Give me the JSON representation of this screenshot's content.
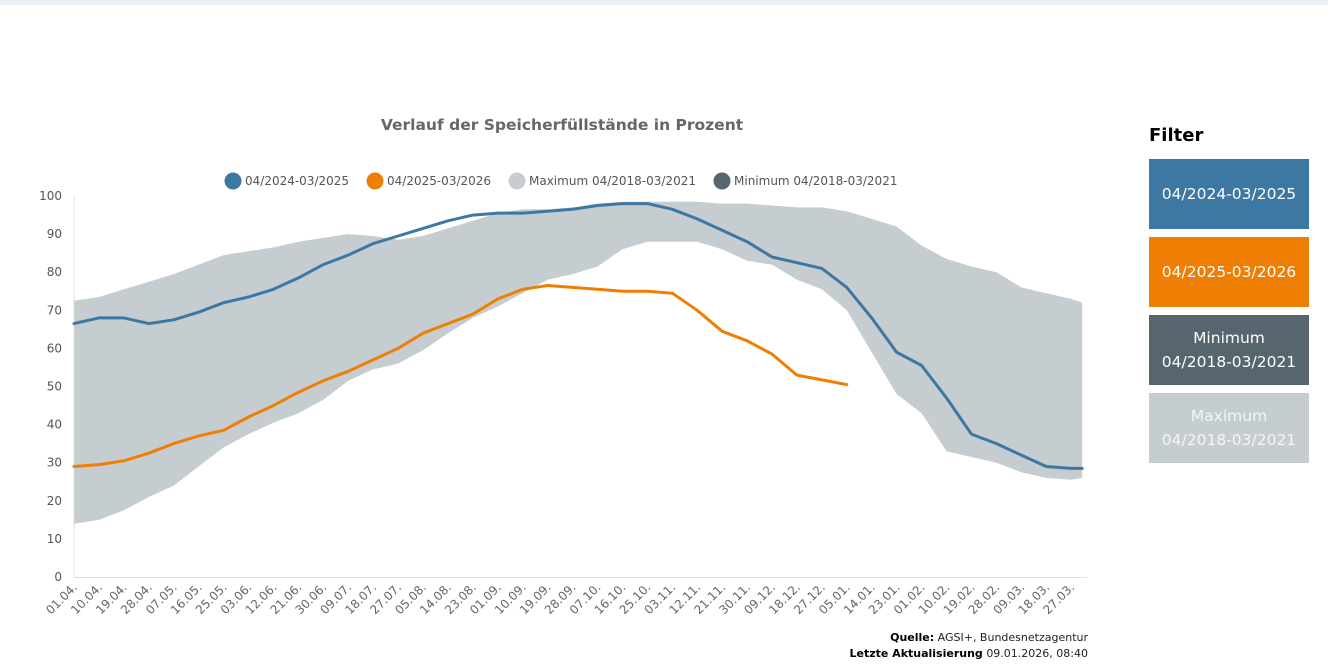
{
  "chart_data": {
    "type": "line",
    "title": "Verlauf der Speicherfüllstände in Prozent",
    "xlabel": "",
    "ylabel": "",
    "ylim": [
      0,
      100
    ],
    "yticks": [
      0,
      10,
      20,
      30,
      40,
      50,
      60,
      70,
      80,
      90,
      100
    ],
    "grid": false,
    "legend_position": "top",
    "x_tick_step_days": 9,
    "x_days_total": 365,
    "categories": [
      "01.04.",
      "10.04.",
      "19.04.",
      "28.04.",
      "07.05.",
      "16.05.",
      "25.05.",
      "03.06.",
      "12.06.",
      "21.06.",
      "30.06.",
      "09.07.",
      "18.07.",
      "27.07.",
      "05.08.",
      "14.08.",
      "23.08.",
      "01.09.",
      "10.09.",
      "19.09.",
      "28.09.",
      "07.10.",
      "16.10.",
      "25.10.",
      "03.11.",
      "12.11.",
      "21.11.",
      "30.11.",
      "09.12.",
      "18.12.",
      "27.12.",
      "05.01.",
      "14.01.",
      "23.01.",
      "01.02.",
      "10.02.",
      "19.02.",
      "28.02.",
      "09.03.",
      "18.03.",
      "27.03."
    ],
    "x_days": [
      0,
      9,
      18,
      27,
      36,
      45,
      54,
      63,
      72,
      81,
      90,
      99,
      108,
      117,
      126,
      135,
      144,
      153,
      162,
      171,
      180,
      189,
      198,
      207,
      216,
      225,
      234,
      243,
      252,
      261,
      270,
      279,
      288,
      297,
      306,
      315,
      324,
      333,
      342,
      351,
      360,
      364
    ],
    "band": {
      "name_upper": "Maximum 04/2018-03/2021",
      "name_lower": "Minimum 04/2018-03/2021",
      "upper": [
        72.5,
        73.5,
        75.5,
        77.5,
        79.5,
        82,
        84.5,
        85.5,
        86.5,
        88,
        89,
        90,
        89.5,
        88.5,
        89.5,
        91.5,
        93.5,
        95.5,
        96.5,
        96.5,
        97,
        98,
        98.5,
        98.5,
        98.5,
        98.5,
        98,
        98,
        97.5,
        97,
        97,
        96,
        94,
        92,
        87,
        83.5,
        81.5,
        80,
        76,
        74.5,
        73,
        72
      ],
      "lower": [
        14,
        15,
        17.5,
        21,
        24,
        29,
        34,
        37.5,
        40.5,
        43,
        46.5,
        51.5,
        54.5,
        56,
        59.5,
        64,
        68,
        71,
        74.5,
        78,
        79.5,
        81.5,
        86,
        88,
        88,
        88,
        86,
        83,
        82,
        78,
        75.5,
        70,
        59,
        48,
        43,
        33,
        31.5,
        30,
        27.5,
        26,
        25.5,
        26
      ]
    },
    "series": [
      {
        "name": "04/2024-03/2025",
        "color": "#3d78a3",
        "values": [
          66.5,
          68,
          68,
          66.5,
          67.5,
          69.5,
          72,
          73.5,
          75.5,
          78.5,
          82,
          84.5,
          87.5,
          89.5,
          91.5,
          93.5,
          95,
          95.5,
          95.5,
          96,
          96.5,
          97.5,
          98,
          98,
          96.5,
          94,
          91,
          88,
          84,
          82.5,
          81,
          76,
          68,
          59,
          55.5,
          47,
          37.5,
          35,
          32,
          29,
          28.5,
          28.5
        ]
      },
      {
        "name": "04/2025-03/2026",
        "color": "#ef7f04",
        "values": [
          29,
          29.5,
          30.5,
          32.5,
          35,
          37,
          38.5,
          42,
          45,
          48.5,
          51.5,
          54,
          57,
          60,
          64,
          66.5,
          69,
          73,
          75.5,
          76.5,
          76,
          75.5,
          75,
          75,
          74.5,
          70,
          64.5,
          62,
          58.5,
          53,
          50.5
        ]
      }
    ],
    "orange_x_days_last": 279,
    "legend": [
      {
        "label": "04/2024-03/2025",
        "color": "#3d78a3"
      },
      {
        "label": "04/2025-03/2026",
        "color": "#ef7f04"
      },
      {
        "label": "Maximum 04/2018-03/2021",
        "color": "#c6cdd1"
      },
      {
        "label": "Minimum 04/2018-03/2021",
        "color": "#56656e"
      }
    ],
    "band_color": "#c6cdd1"
  },
  "source": {
    "label": "Quelle:",
    "value": "AGSI+, Bundesnetzagentur",
    "updated_label": "Letzte Aktualisierung",
    "updated_value": "09.01.2026, 08:40"
  },
  "filter": {
    "title": "Filter",
    "buttons": [
      {
        "line1": "04/2024-03/2025",
        "line2": "",
        "color": "#3d78a3"
      },
      {
        "line1": "04/2025-03/2026",
        "line2": "",
        "color": "#ef7f04"
      },
      {
        "line1": "Minimum",
        "line2": "04/2018-03/2021",
        "color": "#56656e"
      },
      {
        "line1": "Maximum",
        "line2": "04/2018-03/2021",
        "color": "#c6cdd1"
      }
    ]
  }
}
